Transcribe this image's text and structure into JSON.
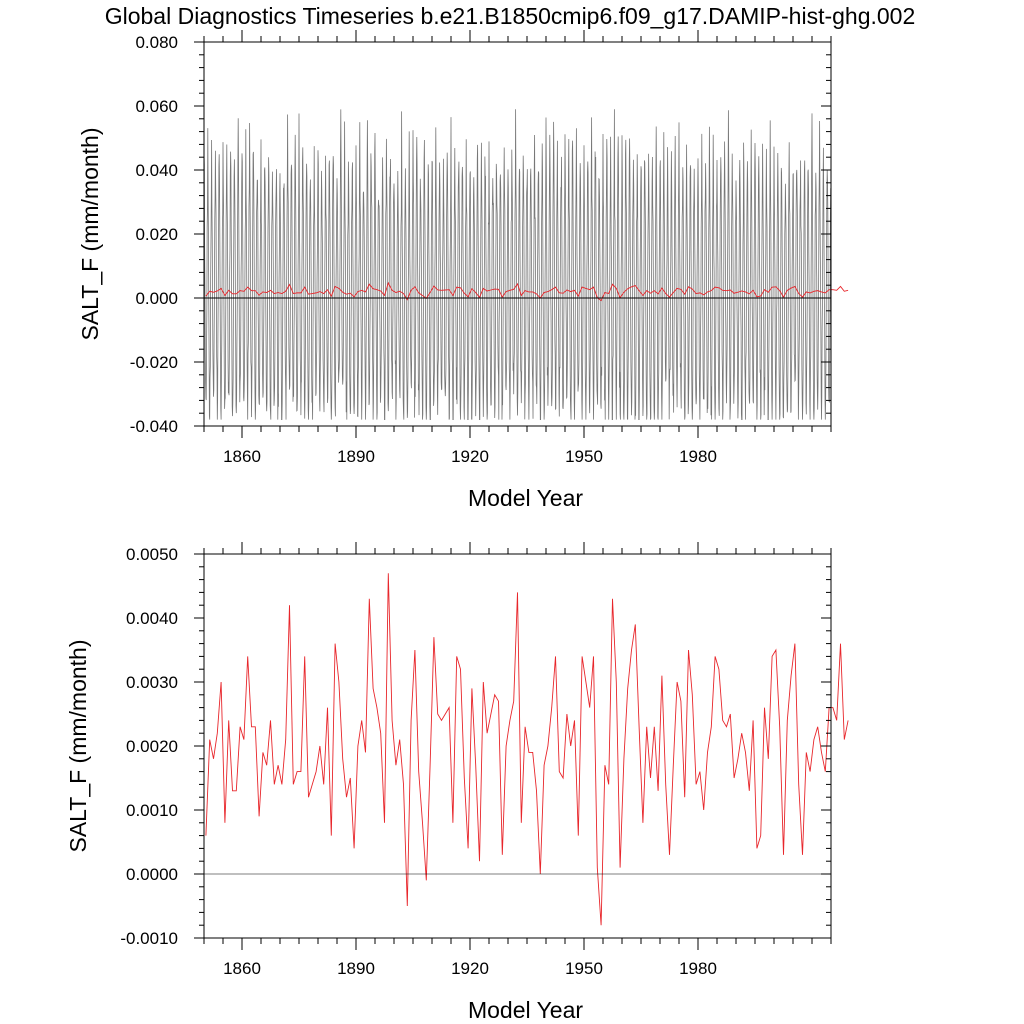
{
  "colors": {
    "monthly": "#777777",
    "annual": "#e8262b",
    "axis": "#000000",
    "zero": "#000000"
  },
  "chart_data": [
    {
      "type": "line",
      "title": "Global Diagnostics Timeseries b.e21.B1850cmip6.f09_g17.DAMIP-hist-ghg.002",
      "xlabel": "Model Year",
      "ylabel": "SALT_F (mm/month)",
      "xlim": [
        1850,
        2015
      ],
      "ylim": [
        -0.04,
        0.08
      ],
      "x_ticks": [
        1860,
        1890,
        1920,
        1950,
        1980
      ],
      "x_tick_labels": [
        "1860",
        "1890",
        "1920",
        "1950",
        "1980"
      ],
      "y_ticks": [
        -0.04,
        -0.02,
        0.0,
        0.02,
        0.04,
        0.06,
        0.08
      ],
      "y_tick_labels": [
        "-0.040",
        "-0.020",
        "0.000",
        "0.020",
        "0.040",
        "0.060",
        "0.080"
      ],
      "reference_line": 0.0,
      "series": [
        {
          "role": "monthly",
          "x_start": 1850,
          "x_end": 2015,
          "seasonal_amplitude_range": [
            0.03,
            0.045
          ],
          "values_min": -0.038,
          "values_max": 0.059
        },
        {
          "role": "annual",
          "values": "same as panel 2 annual series"
        }
      ]
    },
    {
      "type": "line",
      "xlabel": "Model Year",
      "ylabel": "SALT_F (mm/month)",
      "xlim": [
        1850,
        2015
      ],
      "ylim": [
        -0.001,
        0.005
      ],
      "x_ticks": [
        1860,
        1890,
        1920,
        1950,
        1980
      ],
      "x_tick_labels": [
        "1860",
        "1890",
        "1920",
        "1950",
        "1980"
      ],
      "y_ticks": [
        -0.001,
        0.0,
        0.001,
        0.002,
        0.003,
        0.004,
        0.005
      ],
      "y_tick_labels": [
        "-0.0010",
        "0.0000",
        "0.0010",
        "0.0020",
        "0.0030",
        "0.0040",
        "0.0050"
      ],
      "reference_line": 0.0,
      "series": [
        {
          "role": "annual",
          "x_start": 1850,
          "values": [
            0.0006,
            0.0021,
            0.0018,
            0.0022,
            0.003,
            0.0008,
            0.0024,
            0.0013,
            0.0013,
            0.0023,
            0.0021,
            0.0034,
            0.0023,
            0.0023,
            0.0009,
            0.0019,
            0.0017,
            0.0024,
            0.0014,
            0.0017,
            0.0014,
            0.0021,
            0.0042,
            0.0014,
            0.0016,
            0.0016,
            0.0034,
            0.0012,
            0.0014,
            0.0016,
            0.002,
            0.0014,
            0.0026,
            0.0006,
            0.0036,
            0.003,
            0.0018,
            0.0012,
            0.0015,
            0.0004,
            0.002,
            0.0024,
            0.0019,
            0.0043,
            0.0029,
            0.0026,
            0.0022,
            0.0008,
            0.0047,
            0.0024,
            0.0017,
            0.0021,
            0.0014,
            -0.0005,
            0.0024,
            0.0035,
            0.0016,
            0.0008,
            -0.0001,
            0.0017,
            0.0037,
            0.0025,
            0.0024,
            0.0025,
            0.0026,
            0.0008,
            0.0034,
            0.0032,
            0.0015,
            0.0004,
            0.0029,
            0.0017,
            0.0002,
            0.003,
            0.0022,
            0.0025,
            0.0028,
            0.0027,
            0.0003,
            0.002,
            0.0024,
            0.0027,
            0.0044,
            0.0008,
            0.0023,
            0.0019,
            0.0019,
            0.0013,
            0.0,
            0.0017,
            0.002,
            0.0026,
            0.0034,
            0.0016,
            0.0015,
            0.0025,
            0.002,
            0.0024,
            0.0006,
            0.0034,
            0.003,
            0.0026,
            0.0034,
            0.0001,
            -0.0008,
            0.0017,
            0.0014,
            0.0043,
            0.003,
            0.0001,
            0.0018,
            0.0029,
            0.0035,
            0.0039,
            0.0023,
            0.0008,
            0.0023,
            0.0015,
            0.0023,
            0.0013,
            0.0031,
            0.0014,
            0.0003,
            0.0017,
            0.003,
            0.0027,
            0.0012,
            0.0035,
            0.0028,
            0.0014,
            0.0016,
            0.001,
            0.0019,
            0.0023,
            0.0034,
            0.0032,
            0.0024,
            0.0023,
            0.0025,
            0.0015,
            0.0018,
            0.0022,
            0.0019,
            0.0013,
            0.0024,
            0.0004,
            0.0006,
            0.0026,
            0.0018,
            0.0034,
            0.0035,
            0.0023,
            0.0003,
            0.0024,
            0.0031,
            0.0036,
            0.0014,
            0.0003,
            0.0019,
            0.0016,
            0.0021,
            0.0023,
            0.0019,
            0.0016,
            0.0026,
            0.0026,
            0.0024,
            0.0036,
            0.0021,
            0.0024
          ]
        }
      ]
    }
  ]
}
